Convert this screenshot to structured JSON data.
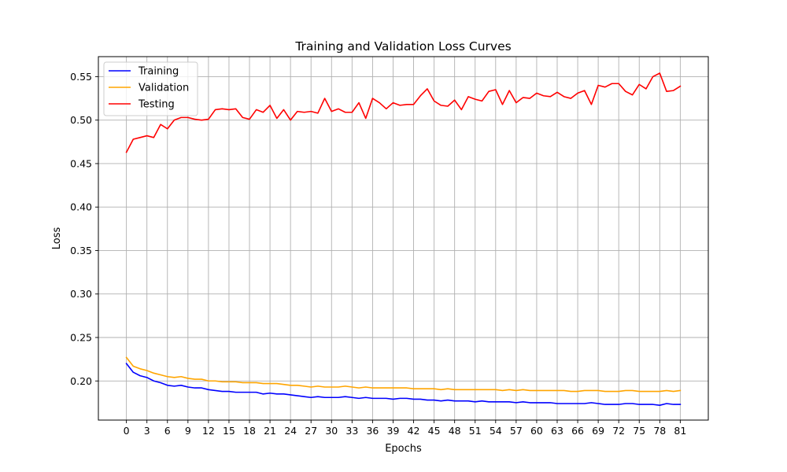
{
  "chart_data": {
    "type": "line",
    "title": "Training and Validation Loss Curves",
    "xlabel": "Epochs",
    "ylabel": "Loss",
    "xlim": [
      -4.1,
      85.1
    ],
    "ylim": [
      0.155,
      0.573
    ],
    "xticks": [
      "0",
      "3",
      "6",
      "9",
      "12",
      "15",
      "18",
      "21",
      "24",
      "27",
      "30",
      "33",
      "36",
      "39",
      "42",
      "45",
      "48",
      "51",
      "54",
      "57",
      "60",
      "63",
      "66",
      "69",
      "72",
      "75",
      "78",
      "81"
    ],
    "yticks": [
      "0.20",
      "0.25",
      "0.30",
      "0.35",
      "0.40",
      "0.45",
      "0.50",
      "0.55"
    ],
    "grid": true,
    "legend_position": "top-left",
    "x": [
      0,
      1,
      2,
      3,
      4,
      5,
      6,
      7,
      8,
      9,
      10,
      11,
      12,
      13,
      14,
      15,
      16,
      17,
      18,
      19,
      20,
      21,
      22,
      23,
      24,
      25,
      26,
      27,
      28,
      29,
      30,
      31,
      32,
      33,
      34,
      35,
      36,
      37,
      38,
      39,
      40,
      41,
      42,
      43,
      44,
      45,
      46,
      47,
      48,
      49,
      50,
      51,
      52,
      53,
      54,
      55,
      56,
      57,
      58,
      59,
      60,
      61,
      62,
      63,
      64,
      65,
      66,
      67,
      68,
      69,
      70,
      71,
      72,
      73,
      74,
      75,
      76,
      77,
      78,
      79,
      80,
      81
    ],
    "series": [
      {
        "name": "Training",
        "color": "#0000ff",
        "values": [
          0.22,
          0.21,
          0.206,
          0.204,
          0.2,
          0.198,
          0.195,
          0.194,
          0.195,
          0.193,
          0.192,
          0.192,
          0.19,
          0.189,
          0.188,
          0.188,
          0.187,
          0.187,
          0.187,
          0.187,
          0.185,
          0.186,
          0.185,
          0.185,
          0.184,
          0.183,
          0.182,
          0.181,
          0.182,
          0.181,
          0.181,
          0.181,
          0.182,
          0.181,
          0.18,
          0.181,
          0.18,
          0.18,
          0.18,
          0.179,
          0.18,
          0.18,
          0.179,
          0.179,
          0.178,
          0.178,
          0.177,
          0.178,
          0.177,
          0.177,
          0.177,
          0.176,
          0.177,
          0.176,
          0.176,
          0.176,
          0.176,
          0.175,
          0.176,
          0.175,
          0.175,
          0.175,
          0.175,
          0.174,
          0.174,
          0.174,
          0.174,
          0.174,
          0.175,
          0.174,
          0.173,
          0.173,
          0.173,
          0.174,
          0.174,
          0.173,
          0.173,
          0.173,
          0.172,
          0.174,
          0.173,
          0.173
        ]
      },
      {
        "name": "Validation",
        "color": "#ffa500",
        "values": [
          0.227,
          0.217,
          0.214,
          0.212,
          0.209,
          0.207,
          0.205,
          0.204,
          0.205,
          0.203,
          0.202,
          0.202,
          0.2,
          0.2,
          0.199,
          0.199,
          0.199,
          0.198,
          0.198,
          0.198,
          0.197,
          0.197,
          0.197,
          0.196,
          0.195,
          0.195,
          0.194,
          0.193,
          0.194,
          0.193,
          0.193,
          0.193,
          0.194,
          0.193,
          0.192,
          0.193,
          0.192,
          0.192,
          0.192,
          0.192,
          0.192,
          0.192,
          0.191,
          0.191,
          0.191,
          0.191,
          0.19,
          0.191,
          0.19,
          0.19,
          0.19,
          0.19,
          0.19,
          0.19,
          0.19,
          0.189,
          0.19,
          0.189,
          0.19,
          0.189,
          0.189,
          0.189,
          0.189,
          0.189,
          0.189,
          0.188,
          0.188,
          0.189,
          0.189,
          0.189,
          0.188,
          0.188,
          0.188,
          0.189,
          0.189,
          0.188,
          0.188,
          0.188,
          0.188,
          0.189,
          0.188,
          0.189
        ]
      },
      {
        "name": "Testing",
        "color": "#ff0000",
        "values": [
          0.463,
          0.478,
          0.48,
          0.482,
          0.48,
          0.495,
          0.49,
          0.5,
          0.503,
          0.503,
          0.501,
          0.5,
          0.501,
          0.512,
          0.513,
          0.512,
          0.513,
          0.503,
          0.501,
          0.512,
          0.509,
          0.517,
          0.502,
          0.512,
          0.5,
          0.51,
          0.509,
          0.51,
          0.508,
          0.525,
          0.51,
          0.513,
          0.509,
          0.509,
          0.52,
          0.502,
          0.525,
          0.52,
          0.513,
          0.52,
          0.517,
          0.518,
          0.518,
          0.528,
          0.536,
          0.522,
          0.517,
          0.516,
          0.523,
          0.512,
          0.527,
          0.524,
          0.522,
          0.533,
          0.535,
          0.518,
          0.534,
          0.52,
          0.526,
          0.525,
          0.531,
          0.528,
          0.527,
          0.532,
          0.527,
          0.525,
          0.531,
          0.534,
          0.518,
          0.54,
          0.538,
          0.542,
          0.542,
          0.533,
          0.529,
          0.541,
          0.536,
          0.55,
          0.554,
          0.533,
          0.534,
          0.539
        ]
      }
    ]
  }
}
